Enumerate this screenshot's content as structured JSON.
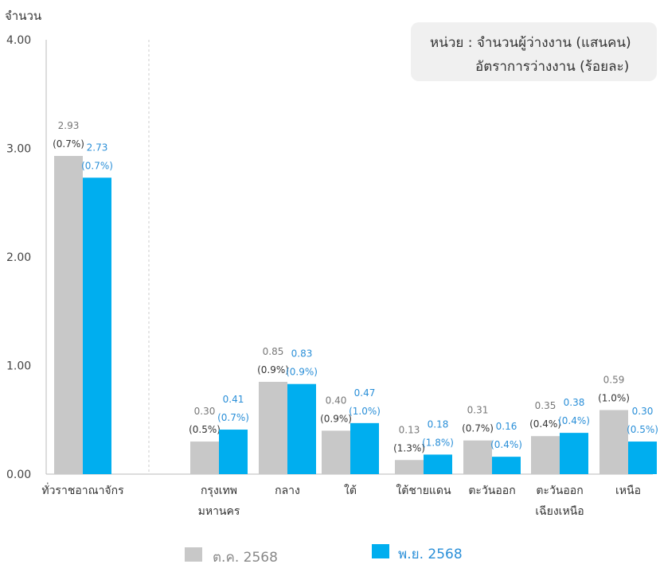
{
  "chart_data": {
    "type": "bar",
    "ylabel": "จำนวน",
    "ylim": [
      0,
      4
    ],
    "yticks": [
      "0.00",
      "1.00",
      "2.00",
      "3.00",
      "4.00"
    ],
    "unit_note": {
      "line1": "หน่วย : จำนวนผู้ว่างงาน (แสนคน)",
      "line2": "อัตราการว่างงาน (ร้อยละ)"
    },
    "categories": [
      [
        "ทั่วราชอาณาจักร"
      ],
      [
        "กรุงเทพ",
        "มหานคร"
      ],
      [
        "กลาง"
      ],
      [
        "ใต้"
      ],
      [
        "ใต้ชายแดน"
      ],
      [
        "ตะวันออก"
      ],
      [
        "ตะวันออก",
        "เฉียงเหนือ"
      ],
      [
        "เหนือ"
      ]
    ],
    "series": [
      {
        "name": "ต.ค. 2568",
        "color": "#c8c8c8",
        "label_color": "#777777",
        "values": [
          2.93,
          0.3,
          0.85,
          0.4,
          0.13,
          0.31,
          0.35,
          0.59
        ],
        "value_labels": [
          "2.93",
          "0.30",
          "0.85",
          "0.40",
          "0.13",
          "0.31",
          "0.35",
          "0.59"
        ],
        "rate_labels": [
          "(0.7%)",
          "(0.5%)",
          "(0.9%)",
          "(0.9%)",
          "(1.3%)",
          "(0.7%)",
          "(0.4%)",
          "(1.0%)"
        ]
      },
      {
        "name": "พ.ย. 2568",
        "color": "#00aeef",
        "label_color": "#2a8fd8",
        "values": [
          2.73,
          0.41,
          0.83,
          0.47,
          0.18,
          0.16,
          0.38,
          0.3
        ],
        "value_labels": [
          "2.73",
          "0.41",
          "0.83",
          "0.47",
          "0.18",
          "0.16",
          "0.38",
          "0.30"
        ],
        "rate_labels": [
          "(0.7%)",
          "(0.7%)",
          "(0.9%)",
          "(1.0%)",
          "(1.8%)",
          "(0.4%)",
          "(0.4%)",
          "(0.5%)"
        ]
      }
    ],
    "grid": false,
    "legend": "bottom"
  }
}
